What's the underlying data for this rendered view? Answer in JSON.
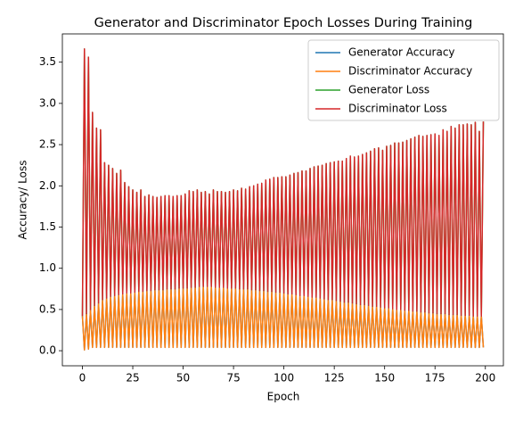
{
  "chart_data": {
    "type": "line",
    "title": "Generator and Discriminator Epoch Losses During Training",
    "xlabel": "Epoch",
    "ylabel": "Accuracy/ Loss",
    "xlim": [
      -9.95,
      208.95
    ],
    "xticks": [
      0,
      25,
      50,
      75,
      100,
      125,
      150,
      175,
      200
    ],
    "ylim": [
      -0.183,
      3.843
    ],
    "yticks": [
      {
        "value": 0,
        "label": "0.0"
      },
      0.5,
      {
        "value": 1,
        "label": "1.0"
      },
      1.5,
      {
        "value": 2,
        "label": "2.0"
      },
      2.5,
      {
        "value": 3,
        "label": "3.0"
      },
      3.5
    ],
    "legend": "upper right",
    "grid": false,
    "x": [
      0,
      1,
      2,
      3,
      4,
      5,
      6,
      7,
      8,
      9,
      10,
      11,
      12,
      13,
      14,
      15,
      16,
      17,
      18,
      19,
      20,
      21,
      22,
      23,
      24,
      25,
      26,
      27,
      28,
      29,
      30,
      31,
      32,
      33,
      34,
      35,
      36,
      37,
      38,
      39,
      40,
      41,
      42,
      43,
      44,
      45,
      46,
      47,
      48,
      49,
      50,
      51,
      52,
      53,
      54,
      55,
      56,
      57,
      58,
      59,
      60,
      61,
      62,
      63,
      64,
      65,
      66,
      67,
      68,
      69,
      70,
      71,
      72,
      73,
      74,
      75,
      76,
      77,
      78,
      79,
      80,
      81,
      82,
      83,
      84,
      85,
      86,
      87,
      88,
      89,
      90,
      91,
      92,
      93,
      94,
      95,
      96,
      97,
      98,
      99,
      100,
      101,
      102,
      103,
      104,
      105,
      106,
      107,
      108,
      109,
      110,
      111,
      112,
      113,
      114,
      115,
      116,
      117,
      118,
      119,
      120,
      121,
      122,
      123,
      124,
      125,
      126,
      127,
      128,
      129,
      130,
      131,
      132,
      133,
      134,
      135,
      136,
      137,
      138,
      139,
      140,
      141,
      142,
      143,
      144,
      145,
      146,
      147,
      148,
      149,
      150,
      151,
      152,
      153,
      154,
      155,
      156,
      157,
      158,
      159,
      160,
      161,
      162,
      163,
      164,
      165,
      166,
      167,
      168,
      169,
      170,
      171,
      172,
      173,
      174,
      175,
      176,
      177,
      178,
      179,
      180,
      181,
      182,
      183,
      184,
      185,
      186,
      187,
      188,
      189,
      190,
      191,
      192,
      193,
      194,
      195,
      196,
      197,
      198,
      199
    ],
    "series": [
      {
        "name": "Generator Accuracy",
        "color": "#1f77b4",
        "values": [
          0.42,
          0.01,
          0.45,
          0.02,
          0.5,
          0.04,
          0.55,
          0.04,
          0.58,
          0.04,
          0.62,
          0.04,
          0.64,
          0.04,
          0.66,
          0.04,
          0.67,
          0.04,
          0.68,
          0.04,
          0.69,
          0.04,
          0.7,
          0.04,
          0.7,
          0.04,
          0.71,
          0.04,
          0.72,
          0.04,
          0.72,
          0.04,
          0.73,
          0.04,
          0.73,
          0.04,
          0.74,
          0.04,
          0.74,
          0.04,
          0.74,
          0.04,
          0.75,
          0.04,
          0.75,
          0.04,
          0.75,
          0.04,
          0.76,
          0.04,
          0.76,
          0.04,
          0.76,
          0.04,
          0.77,
          0.04,
          0.77,
          0.04,
          0.78,
          0.04,
          0.78,
          0.04,
          0.78,
          0.04,
          0.78,
          0.04,
          0.77,
          0.04,
          0.77,
          0.04,
          0.77,
          0.04,
          0.76,
          0.04,
          0.76,
          0.04,
          0.76,
          0.04,
          0.75,
          0.04,
          0.75,
          0.04,
          0.75,
          0.04,
          0.74,
          0.04,
          0.74,
          0.04,
          0.73,
          0.04,
          0.73,
          0.04,
          0.72,
          0.04,
          0.72,
          0.04,
          0.71,
          0.04,
          0.71,
          0.04,
          0.7,
          0.04,
          0.69,
          0.04,
          0.69,
          0.04,
          0.68,
          0.04,
          0.67,
          0.04,
          0.67,
          0.04,
          0.66,
          0.04,
          0.65,
          0.04,
          0.65,
          0.04,
          0.64,
          0.04,
          0.63,
          0.04,
          0.62,
          0.04,
          0.62,
          0.04,
          0.61,
          0.04,
          0.6,
          0.04,
          0.59,
          0.04,
          0.59,
          0.04,
          0.58,
          0.04,
          0.57,
          0.04,
          0.56,
          0.04,
          0.56,
          0.04,
          0.55,
          0.04,
          0.54,
          0.04,
          0.54,
          0.04,
          0.53,
          0.04,
          0.52,
          0.04,
          0.52,
          0.04,
          0.51,
          0.04,
          0.5,
          0.04,
          0.5,
          0.04,
          0.49,
          0.04,
          0.49,
          0.04,
          0.48,
          0.04,
          0.48,
          0.04,
          0.47,
          0.04,
          0.47,
          0.04,
          0.46,
          0.04,
          0.46,
          0.04,
          0.45,
          0.04,
          0.45,
          0.04,
          0.45,
          0.04,
          0.44,
          0.04,
          0.44,
          0.04,
          0.44,
          0.04,
          0.43,
          0.04,
          0.43,
          0.04,
          0.43,
          0.04,
          0.42,
          0.04,
          0.42,
          0.04,
          0.42,
          0.04
        ]
      },
      {
        "name": "Discriminator Accuracy",
        "color": "#ff7f0e",
        "values": [
          0.42,
          0.01,
          0.45,
          0.02,
          0.5,
          0.04,
          0.55,
          0.04,
          0.58,
          0.04,
          0.62,
          0.04,
          0.64,
          0.04,
          0.66,
          0.04,
          0.67,
          0.04,
          0.68,
          0.04,
          0.69,
          0.04,
          0.7,
          0.04,
          0.7,
          0.04,
          0.71,
          0.04,
          0.72,
          0.04,
          0.72,
          0.04,
          0.73,
          0.04,
          0.73,
          0.04,
          0.74,
          0.04,
          0.74,
          0.04,
          0.74,
          0.04,
          0.75,
          0.04,
          0.75,
          0.04,
          0.75,
          0.04,
          0.76,
          0.04,
          0.76,
          0.04,
          0.76,
          0.04,
          0.77,
          0.04,
          0.77,
          0.04,
          0.78,
          0.04,
          0.78,
          0.04,
          0.78,
          0.04,
          0.78,
          0.04,
          0.77,
          0.04,
          0.77,
          0.04,
          0.77,
          0.04,
          0.76,
          0.04,
          0.76,
          0.04,
          0.76,
          0.04,
          0.75,
          0.04,
          0.75,
          0.04,
          0.75,
          0.04,
          0.74,
          0.04,
          0.74,
          0.04,
          0.73,
          0.04,
          0.73,
          0.04,
          0.72,
          0.04,
          0.72,
          0.04,
          0.71,
          0.04,
          0.71,
          0.04,
          0.7,
          0.04,
          0.69,
          0.04,
          0.69,
          0.04,
          0.68,
          0.04,
          0.67,
          0.04,
          0.67,
          0.04,
          0.66,
          0.04,
          0.65,
          0.04,
          0.65,
          0.04,
          0.64,
          0.04,
          0.63,
          0.04,
          0.62,
          0.04,
          0.62,
          0.04,
          0.61,
          0.04,
          0.6,
          0.04,
          0.59,
          0.04,
          0.59,
          0.04,
          0.58,
          0.04,
          0.57,
          0.04,
          0.56,
          0.04,
          0.56,
          0.04,
          0.55,
          0.04,
          0.54,
          0.04,
          0.54,
          0.04,
          0.53,
          0.04,
          0.52,
          0.04,
          0.52,
          0.04,
          0.51,
          0.04,
          0.5,
          0.04,
          0.5,
          0.04,
          0.49,
          0.04,
          0.49,
          0.04,
          0.48,
          0.04,
          0.48,
          0.04,
          0.47,
          0.04,
          0.47,
          0.04,
          0.46,
          0.04,
          0.46,
          0.04,
          0.45,
          0.04,
          0.45,
          0.04,
          0.45,
          0.04,
          0.44,
          0.04,
          0.44,
          0.04,
          0.44,
          0.04,
          0.43,
          0.04,
          0.43,
          0.04,
          0.43,
          0.04,
          0.42,
          0.04,
          0.42,
          0.04,
          0.42,
          0.04
        ]
      },
      {
        "name": "Generator Loss",
        "color": "#2ca02c",
        "values": [
          0.42,
          3.66,
          0.45,
          3.56,
          0.5,
          2.89,
          0.55,
          2.7,
          0.58,
          2.68,
          0.62,
          2.28,
          0.64,
          2.25,
          0.66,
          2.21,
          0.67,
          2.15,
          0.68,
          2.19,
          0.69,
          2.04,
          0.7,
          1.99,
          0.7,
          1.95,
          0.71,
          1.92,
          0.72,
          1.95,
          0.72,
          1.87,
          0.73,
          1.89,
          0.73,
          1.87,
          0.74,
          1.86,
          0.74,
          1.87,
          0.74,
          1.88,
          0.75,
          1.88,
          0.75,
          1.87,
          0.75,
          1.88,
          0.76,
          1.88,
          0.76,
          1.9,
          0.76,
          1.94,
          0.77,
          1.93,
          0.77,
          1.95,
          0.78,
          1.92,
          0.78,
          1.93,
          0.78,
          1.9,
          0.78,
          1.95,
          0.77,
          1.93,
          0.77,
          1.93,
          0.77,
          1.92,
          0.76,
          1.93,
          0.76,
          1.95,
          0.76,
          1.94,
          0.75,
          1.97,
          0.75,
          1.96,
          0.75,
          1.99,
          0.74,
          2.0,
          0.74,
          2.02,
          0.73,
          2.03,
          0.73,
          2.07,
          0.72,
          2.08,
          0.72,
          2.1,
          0.71,
          2.1,
          0.71,
          2.11,
          0.7,
          2.11,
          0.69,
          2.13,
          0.69,
          2.15,
          0.68,
          2.16,
          0.67,
          2.18,
          0.67,
          2.18,
          0.66,
          2.21,
          0.65,
          2.23,
          0.65,
          2.24,
          0.64,
          2.25,
          0.63,
          2.27,
          0.62,
          2.28,
          0.62,
          2.29,
          0.61,
          2.3,
          0.6,
          2.3,
          0.59,
          2.33,
          0.59,
          2.36,
          0.58,
          2.35,
          0.57,
          2.36,
          0.56,
          2.38,
          0.56,
          2.4,
          0.55,
          2.42,
          0.54,
          2.45,
          0.54,
          2.46,
          0.53,
          2.43,
          0.52,
          2.48,
          0.52,
          2.49,
          0.51,
          2.52,
          0.5,
          2.52,
          0.5,
          2.53,
          0.49,
          2.55,
          0.49,
          2.57,
          0.48,
          2.59,
          0.48,
          2.61,
          0.47,
          2.6,
          0.47,
          2.61,
          0.46,
          2.62,
          0.46,
          2.63,
          0.45,
          2.61,
          0.45,
          2.68,
          0.45,
          2.66,
          0.44,
          2.72,
          0.44,
          2.7,
          0.44,
          2.74,
          0.43,
          2.74,
          0.43,
          2.75,
          0.43,
          2.74,
          0.42,
          2.77,
          0.42,
          2.66,
          0.42,
          2.78
        ]
      },
      {
        "name": "Discriminator Loss",
        "color": "#d62728",
        "values": [
          0.42,
          3.66,
          0.45,
          3.56,
          0.5,
          2.89,
          0.55,
          2.7,
          0.58,
          2.68,
          0.62,
          2.28,
          0.64,
          2.25,
          0.66,
          2.21,
          0.67,
          2.15,
          0.68,
          2.19,
          0.69,
          2.04,
          0.7,
          1.99,
          0.7,
          1.95,
          0.71,
          1.92,
          0.72,
          1.95,
          0.72,
          1.87,
          0.73,
          1.89,
          0.73,
          1.87,
          0.74,
          1.86,
          0.74,
          1.87,
          0.74,
          1.88,
          0.75,
          1.88,
          0.75,
          1.87,
          0.75,
          1.88,
          0.76,
          1.88,
          0.76,
          1.9,
          0.76,
          1.94,
          0.77,
          1.93,
          0.77,
          1.95,
          0.78,
          1.92,
          0.78,
          1.93,
          0.78,
          1.9,
          0.78,
          1.95,
          0.77,
          1.93,
          0.77,
          1.93,
          0.77,
          1.92,
          0.76,
          1.93,
          0.76,
          1.95,
          0.76,
          1.94,
          0.75,
          1.97,
          0.75,
          1.96,
          0.75,
          1.99,
          0.74,
          2.0,
          0.74,
          2.02,
          0.73,
          2.03,
          0.73,
          2.07,
          0.72,
          2.08,
          0.72,
          2.1,
          0.71,
          2.1,
          0.71,
          2.11,
          0.7,
          2.11,
          0.69,
          2.13,
          0.69,
          2.15,
          0.68,
          2.16,
          0.67,
          2.18,
          0.67,
          2.18,
          0.66,
          2.21,
          0.65,
          2.23,
          0.65,
          2.24,
          0.64,
          2.25,
          0.63,
          2.27,
          0.62,
          2.28,
          0.62,
          2.29,
          0.61,
          2.3,
          0.6,
          2.3,
          0.59,
          2.33,
          0.59,
          2.36,
          0.58,
          2.35,
          0.57,
          2.36,
          0.56,
          2.38,
          0.56,
          2.4,
          0.55,
          2.42,
          0.54,
          2.45,
          0.54,
          2.46,
          0.53,
          2.43,
          0.52,
          2.48,
          0.52,
          2.49,
          0.51,
          2.52,
          0.5,
          2.52,
          0.5,
          2.53,
          0.49,
          2.55,
          0.49,
          2.57,
          0.48,
          2.59,
          0.48,
          2.61,
          0.47,
          2.6,
          0.47,
          2.61,
          0.46,
          2.62,
          0.46,
          2.63,
          0.45,
          2.61,
          0.45,
          2.68,
          0.45,
          2.66,
          0.44,
          2.72,
          0.44,
          2.7,
          0.44,
          2.74,
          0.43,
          2.74,
          0.43,
          2.75,
          0.43,
          2.74,
          0.42,
          2.77,
          0.42,
          2.66,
          0.42,
          2.78
        ]
      }
    ]
  }
}
